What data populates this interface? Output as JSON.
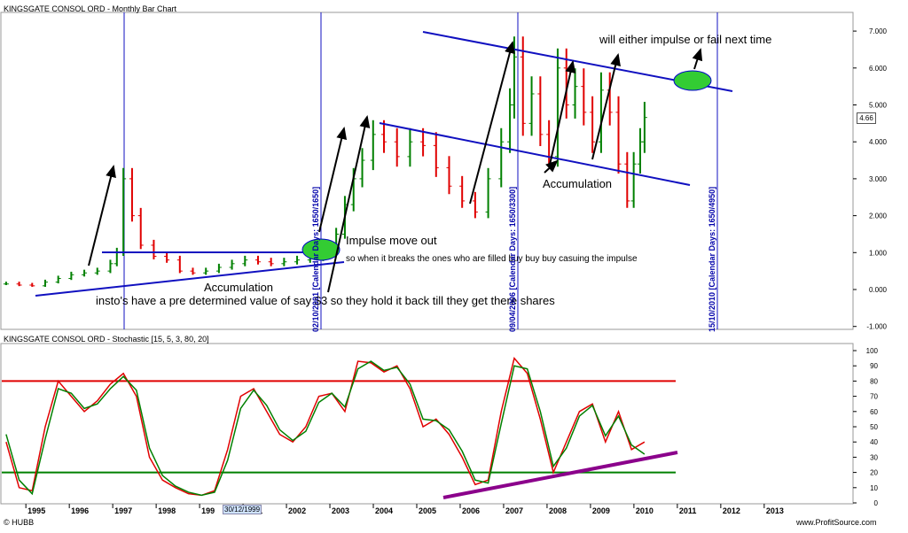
{
  "header": {
    "price_title": "KINGSGATE CONSOL ORD - Monthly Bar Chart",
    "stoch_title": "KINGSGATE CONSOL ORD - Stochastic [15, 5, 3, 80, 20]",
    "current_price": "4.66",
    "tooltip_date": "30/12/1999"
  },
  "annotations": {
    "impulse": "Impulse move out",
    "breaks": "so when it breaks the ones who are filled buy buy buy casuing the impulse",
    "accum_left": "Accumulation",
    "instos": "insto's have a pre determined value of say $3 so they hold it back till they get there shares",
    "accum_right": "Accumulation",
    "either": "will either impulse or fail next time"
  },
  "calendar_labels": [
    "02/10/2001 [Calendar Days: 1650/1650]",
    "09/04/2006 [Calendar Days: 1650/3300]",
    "15/10/2010 [Calendar Days: 1650/4950]"
  ],
  "footer": {
    "left": "© HUBB",
    "right": "www.ProfitSource.com"
  },
  "colors": {
    "up_bar": "#008000",
    "down_bar": "#e00000",
    "trend_line": "#1010c0",
    "accent_green": "#33cc33",
    "stoch_fast": "#e00000",
    "stoch_slow": "#008000",
    "support_purple": "#8b008b"
  },
  "chart_data": [
    {
      "type": "bar",
      "title": "KINGSGATE CONSOL ORD - Monthly Bar Chart",
      "x_tick_labels": [
        "1995",
        "1996",
        "1997",
        "1998",
        "199",
        "2001",
        "2002",
        "2003",
        "2004",
        "2005",
        "2006",
        "2007",
        "2008",
        "2009",
        "2010",
        "2011",
        "2012",
        "2013"
      ],
      "y_tick_labels": [
        "-1.000",
        "0.000",
        "1.000",
        "2.000",
        "3.000",
        "4.000",
        "5.000",
        "6.000",
        "7.000"
      ],
      "ylim": [
        -1,
        7.4
      ],
      "xlim": [
        1994.2,
        2013.8
      ],
      "grid": false,
      "series": [
        {
          "x": [
            1994.3,
            1994.6,
            1994.9,
            1995.2,
            1995.5,
            1995.8,
            1996.1,
            1996.4,
            1996.7,
            1996.85,
            1997.0,
            1997.2,
            1997.4,
            1997.7,
            1998.0,
            1998.3,
            1998.6,
            1998.9,
            1999.2,
            1999.5,
            1999.8,
            2000.1,
            2000.4,
            2000.7,
            2001.0,
            2001.3,
            2001.6,
            2001.9,
            2002.1,
            2002.3,
            2002.5,
            2002.75,
            2003.0,
            2003.3,
            2003.6,
            2003.9,
            2004.2,
            2004.5,
            2004.8,
            2005.1,
            2005.4,
            2005.7,
            2005.9,
            2006.0,
            2006.2,
            2006.4,
            2006.6,
            2006.8,
            2007.0,
            2007.2,
            2007.4,
            2007.6,
            2007.8,
            2008.0,
            2008.2,
            2008.4,
            2008.6,
            2008.75,
            2008.9,
            2009.0
          ],
          "values": [
            0.15,
            0.12,
            0.1,
            0.2,
            0.3,
            0.4,
            0.45,
            0.5,
            0.7,
            1.0,
            3.0,
            2.0,
            1.2,
            0.9,
            0.8,
            0.5,
            0.45,
            0.5,
            0.6,
            0.7,
            0.8,
            0.75,
            0.7,
            0.75,
            0.8,
            0.85,
            1.0,
            1.5,
            2.3,
            3.0,
            3.5,
            4.2,
            4.0,
            3.6,
            4.0,
            3.9,
            3.3,
            2.8,
            2.4,
            2.1,
            3.0,
            4.0,
            5.0,
            6.3,
            4.5,
            5.3,
            4.2,
            3.6,
            6.0,
            5.0,
            5.5,
            4.8,
            4.0,
            5.4,
            4.8,
            3.4,
            2.4,
            3.4,
            4.0,
            4.66
          ]
        }
      ]
    },
    {
      "type": "line",
      "title": "KINGSGATE CONSOL ORD - Stochastic [15, 5, 3, 80, 20]",
      "y_tick_labels": [
        "0",
        "10",
        "20",
        "30",
        "40",
        "50",
        "60",
        "70",
        "80",
        "90",
        "100"
      ],
      "ylim": [
        0,
        100
      ],
      "levels": [
        80,
        20
      ],
      "series": [
        {
          "x": [
            1994.3,
            1994.6,
            1994.9,
            1995.2,
            1995.5,
            1995.8,
            1996.1,
            1996.4,
            1996.7,
            1997.0,
            1997.3,
            1997.6,
            1997.9,
            1998.2,
            1998.5,
            1998.8,
            1999.1,
            1999.4,
            1999.7,
            2000.0,
            2000.3,
            2000.6,
            2000.9,
            2001.2,
            2001.5,
            2001.8,
            2002.1,
            2002.4,
            2002.7,
            2003.0,
            2003.3,
            2003.6,
            2003.9,
            2004.2,
            2004.5,
            2004.8,
            2005.1,
            2005.4,
            2005.7,
            2006.0,
            2006.3,
            2006.6,
            2006.9,
            2007.2,
            2007.5,
            2007.8,
            2008.1,
            2008.4,
            2008.7,
            2009.0
          ],
          "values": [
            40,
            10,
            8,
            50,
            80,
            70,
            60,
            67,
            78,
            85,
            70,
            30,
            15,
            10,
            6,
            5,
            8,
            35,
            70,
            75,
            60,
            45,
            40,
            50,
            70,
            72,
            60,
            93,
            92,
            86,
            90,
            75,
            50,
            55,
            45,
            30,
            12,
            15,
            60,
            95,
            85,
            55,
            20,
            40,
            60,
            65,
            40,
            60,
            35,
            40
          ]
        },
        {
          "x": [
            1994.3,
            1994.6,
            1994.9,
            1995.2,
            1995.5,
            1995.8,
            1996.1,
            1996.4,
            1996.7,
            1997.0,
            1997.3,
            1997.6,
            1997.9,
            1998.2,
            1998.5,
            1998.8,
            1999.1,
            1999.4,
            1999.7,
            2000.0,
            2000.3,
            2000.6,
            2000.9,
            2001.2,
            2001.5,
            2001.8,
            2002.1,
            2002.4,
            2002.7,
            2003.0,
            2003.3,
            2003.6,
            2003.9,
            2004.2,
            2004.5,
            2004.8,
            2005.1,
            2005.4,
            2005.7,
            2006.0,
            2006.3,
            2006.6,
            2006.9,
            2007.2,
            2007.5,
            2007.8,
            2008.1,
            2008.4,
            2008.7,
            2009.0
          ],
          "values": [
            45,
            15,
            6,
            42,
            75,
            72,
            62,
            65,
            75,
            83,
            74,
            36,
            18,
            11,
            7,
            5,
            7,
            28,
            62,
            74,
            64,
            48,
            41,
            47,
            66,
            72,
            63,
            88,
            93,
            87,
            89,
            78,
            55,
            54,
            48,
            34,
            15,
            13,
            52,
            90,
            88,
            60,
            24,
            36,
            57,
            64,
            44,
            57,
            38,
            32
          ]
        }
      ]
    }
  ]
}
